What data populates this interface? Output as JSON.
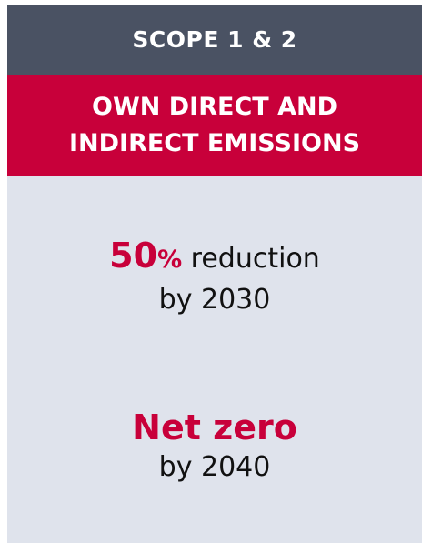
{
  "header": {
    "title": "SCOPE 1 & 2"
  },
  "subheader": {
    "lines": [
      "OWN DIRECT AND",
      "INDIRECT EMISSIONS"
    ]
  },
  "targets": [
    {
      "highlight": "50",
      "unit": "%",
      "text": "reduction",
      "deadline": "by 2030"
    },
    {
      "highlight": "Net zero",
      "deadline": "by 2040"
    }
  ]
}
